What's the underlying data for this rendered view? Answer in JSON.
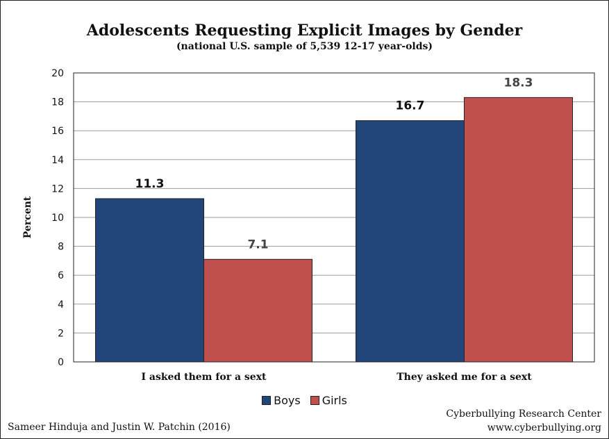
{
  "chart_data": {
    "type": "bar",
    "title": "Adolescents Requesting Explicit Images by Gender",
    "subtitle": "(national U.S. sample of 5,539 12-17 year-olds)",
    "ylabel": "Percent",
    "xlabel": "",
    "ylim": [
      0,
      20
    ],
    "yticks": [
      0,
      2,
      4,
      6,
      8,
      10,
      12,
      14,
      16,
      18,
      20
    ],
    "grid": true,
    "legend_position": "bottom-center",
    "categories": [
      "I asked them for a sext",
      "They asked me for a sext"
    ],
    "series": [
      {
        "name": "Boys",
        "color": "#22467a",
        "values": [
          11.3,
          16.7
        ],
        "labels": [
          "11.3",
          "16.7"
        ],
        "label_color": "#111111"
      },
      {
        "name": "Girls",
        "color": "#c0504d",
        "values": [
          7.1,
          18.3
        ],
        "labels": [
          "7.1",
          "18.3"
        ],
        "label_color": "#444444"
      }
    ]
  },
  "credits": {
    "left": "Sameer Hinduja and Justin W. Patchin (2016)",
    "right_line1": "Cyberbullying Research Center",
    "right_line2": "www.cyberbullying.org"
  }
}
